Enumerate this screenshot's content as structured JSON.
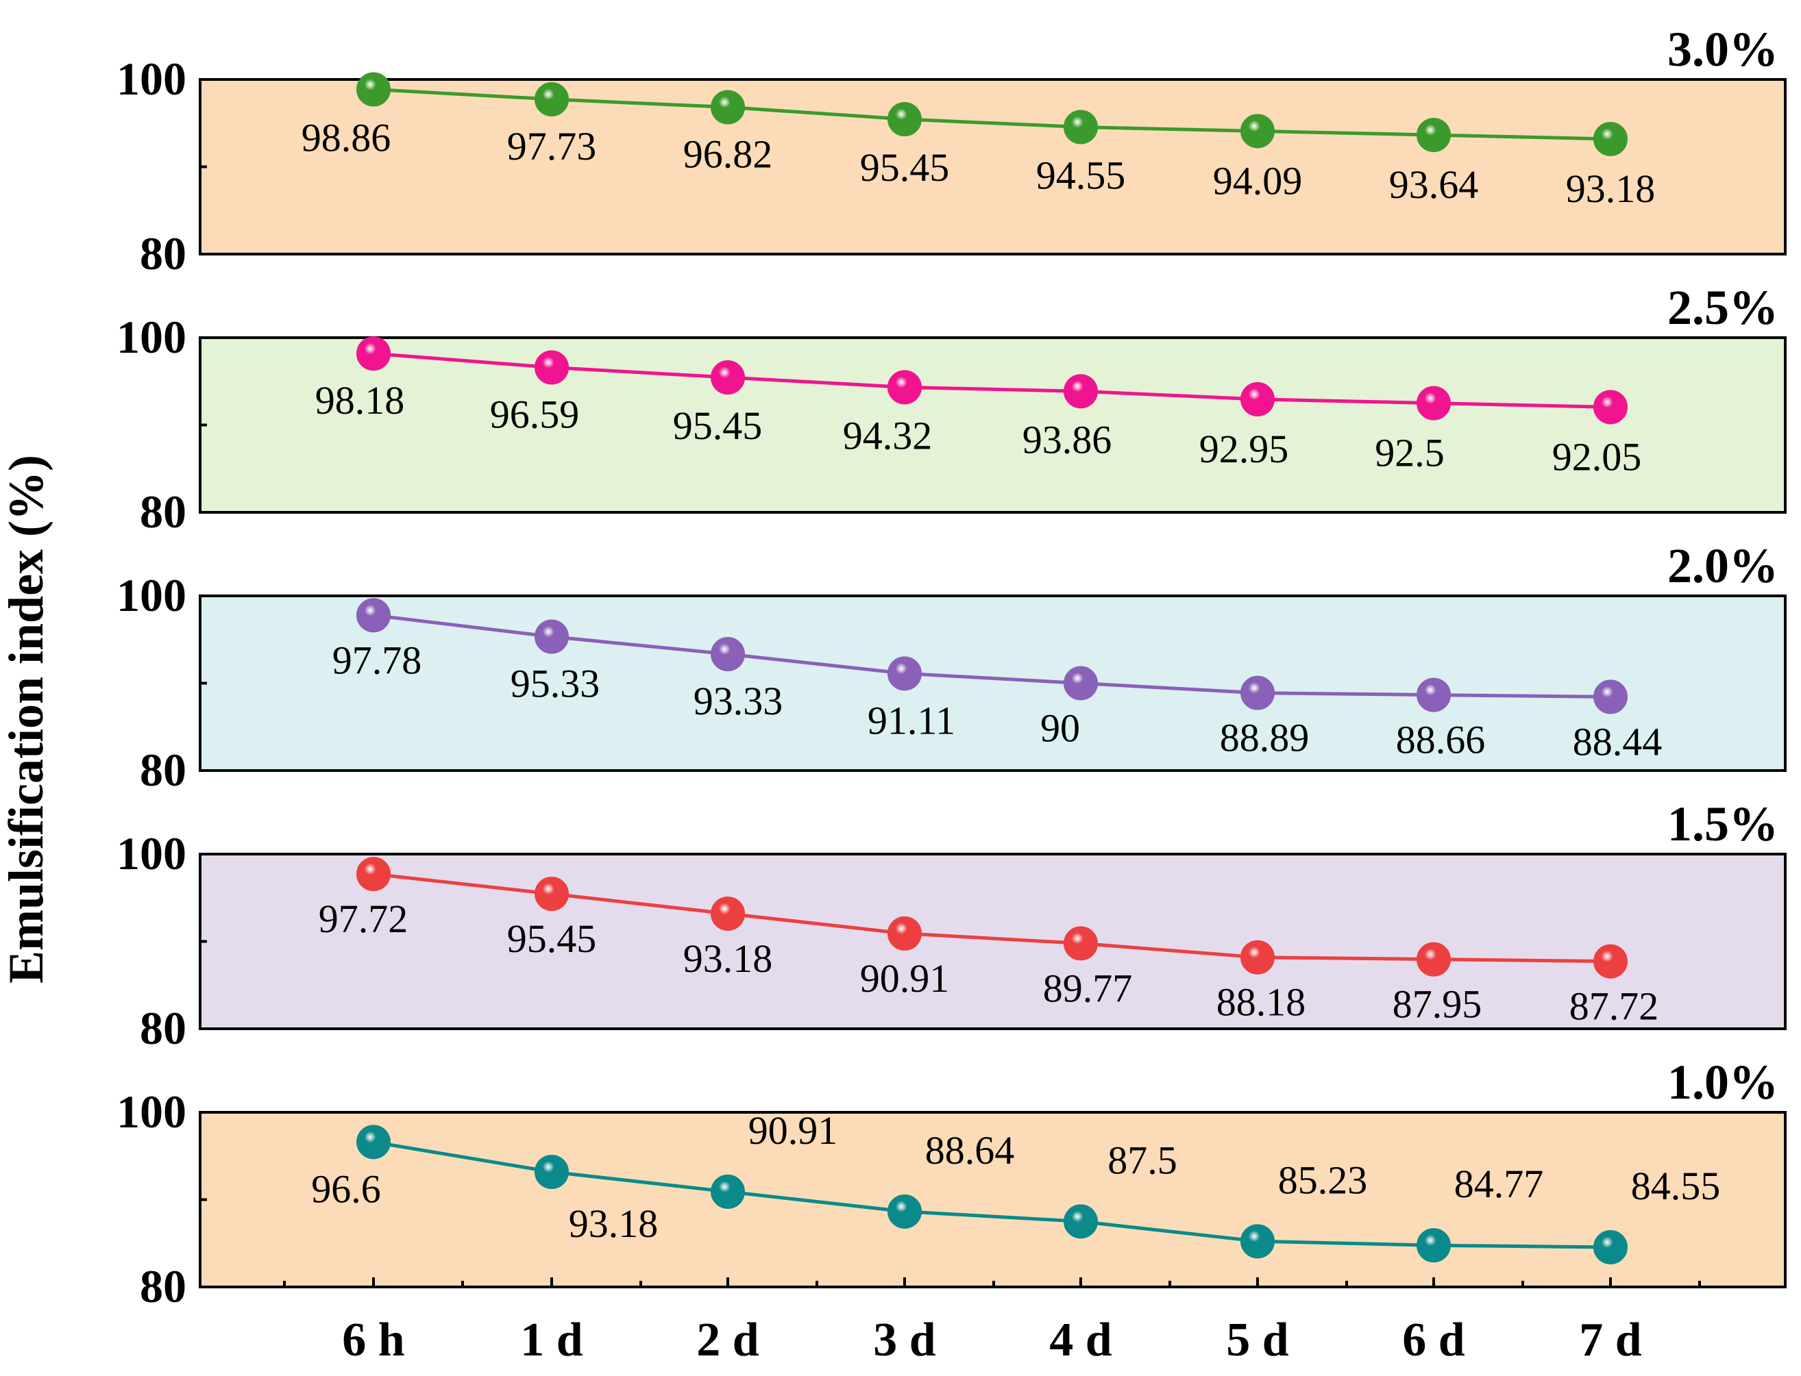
{
  "chart_data": {
    "type": "line",
    "ylabel": "Emulsification index (%)",
    "categories": [
      "6 h",
      "1 d",
      "2 d",
      "3 d",
      "4 d",
      "5 d",
      "6 d",
      "7 d"
    ],
    "ylim": [
      80,
      100
    ],
    "yticks": [
      80,
      100
    ],
    "panels": [
      {
        "name": "3.0%",
        "background": "#fcdcb8",
        "color": "#3c9a2c",
        "values": [
          98.86,
          97.73,
          96.82,
          95.45,
          94.55,
          94.09,
          93.64,
          93.18
        ],
        "labels": [
          "98.86",
          "97.73",
          "96.82",
          "95.45",
          "94.55",
          "94.09",
          "93.64",
          "93.18"
        ]
      },
      {
        "name": "2.5%",
        "background": "#e4f2d6",
        "color": "#f01490",
        "values": [
          98.18,
          96.59,
          95.45,
          94.32,
          93.86,
          92.95,
          92.5,
          92.05
        ],
        "labels": [
          "98.18",
          "96.59",
          "95.45",
          "94.32",
          "93.86",
          "92.95",
          "92.5",
          "92.05"
        ]
      },
      {
        "name": "2.0%",
        "background": "#dcf0f2",
        "color": "#8a60b8",
        "values": [
          97.78,
          95.33,
          93.33,
          91.11,
          90,
          88.89,
          88.66,
          88.44
        ],
        "labels": [
          "97.78",
          "95.33",
          "93.33",
          "91.11",
          "90",
          "88.89",
          "88.66",
          "88.44"
        ]
      },
      {
        "name": "1.5%",
        "background": "#e4dcec",
        "color": "#ec4040",
        "values": [
          97.72,
          95.45,
          93.18,
          90.91,
          89.77,
          88.18,
          87.95,
          87.72
        ],
        "labels": [
          "97.72",
          "95.45",
          "93.18",
          "90.91",
          "89.77",
          "88.18",
          "87.95",
          "87.72"
        ]
      },
      {
        "name": "1.0%",
        "background": "#fcdcb8",
        "color": "#0a8a8a",
        "values": [
          96.6,
          93.18,
          90.91,
          88.64,
          87.5,
          85.23,
          84.77,
          84.55
        ],
        "labels": [
          "96.6",
          "93.18",
          "90.91",
          "88.64",
          "87.5",
          "85.23",
          "84.77",
          "84.55"
        ]
      }
    ]
  }
}
